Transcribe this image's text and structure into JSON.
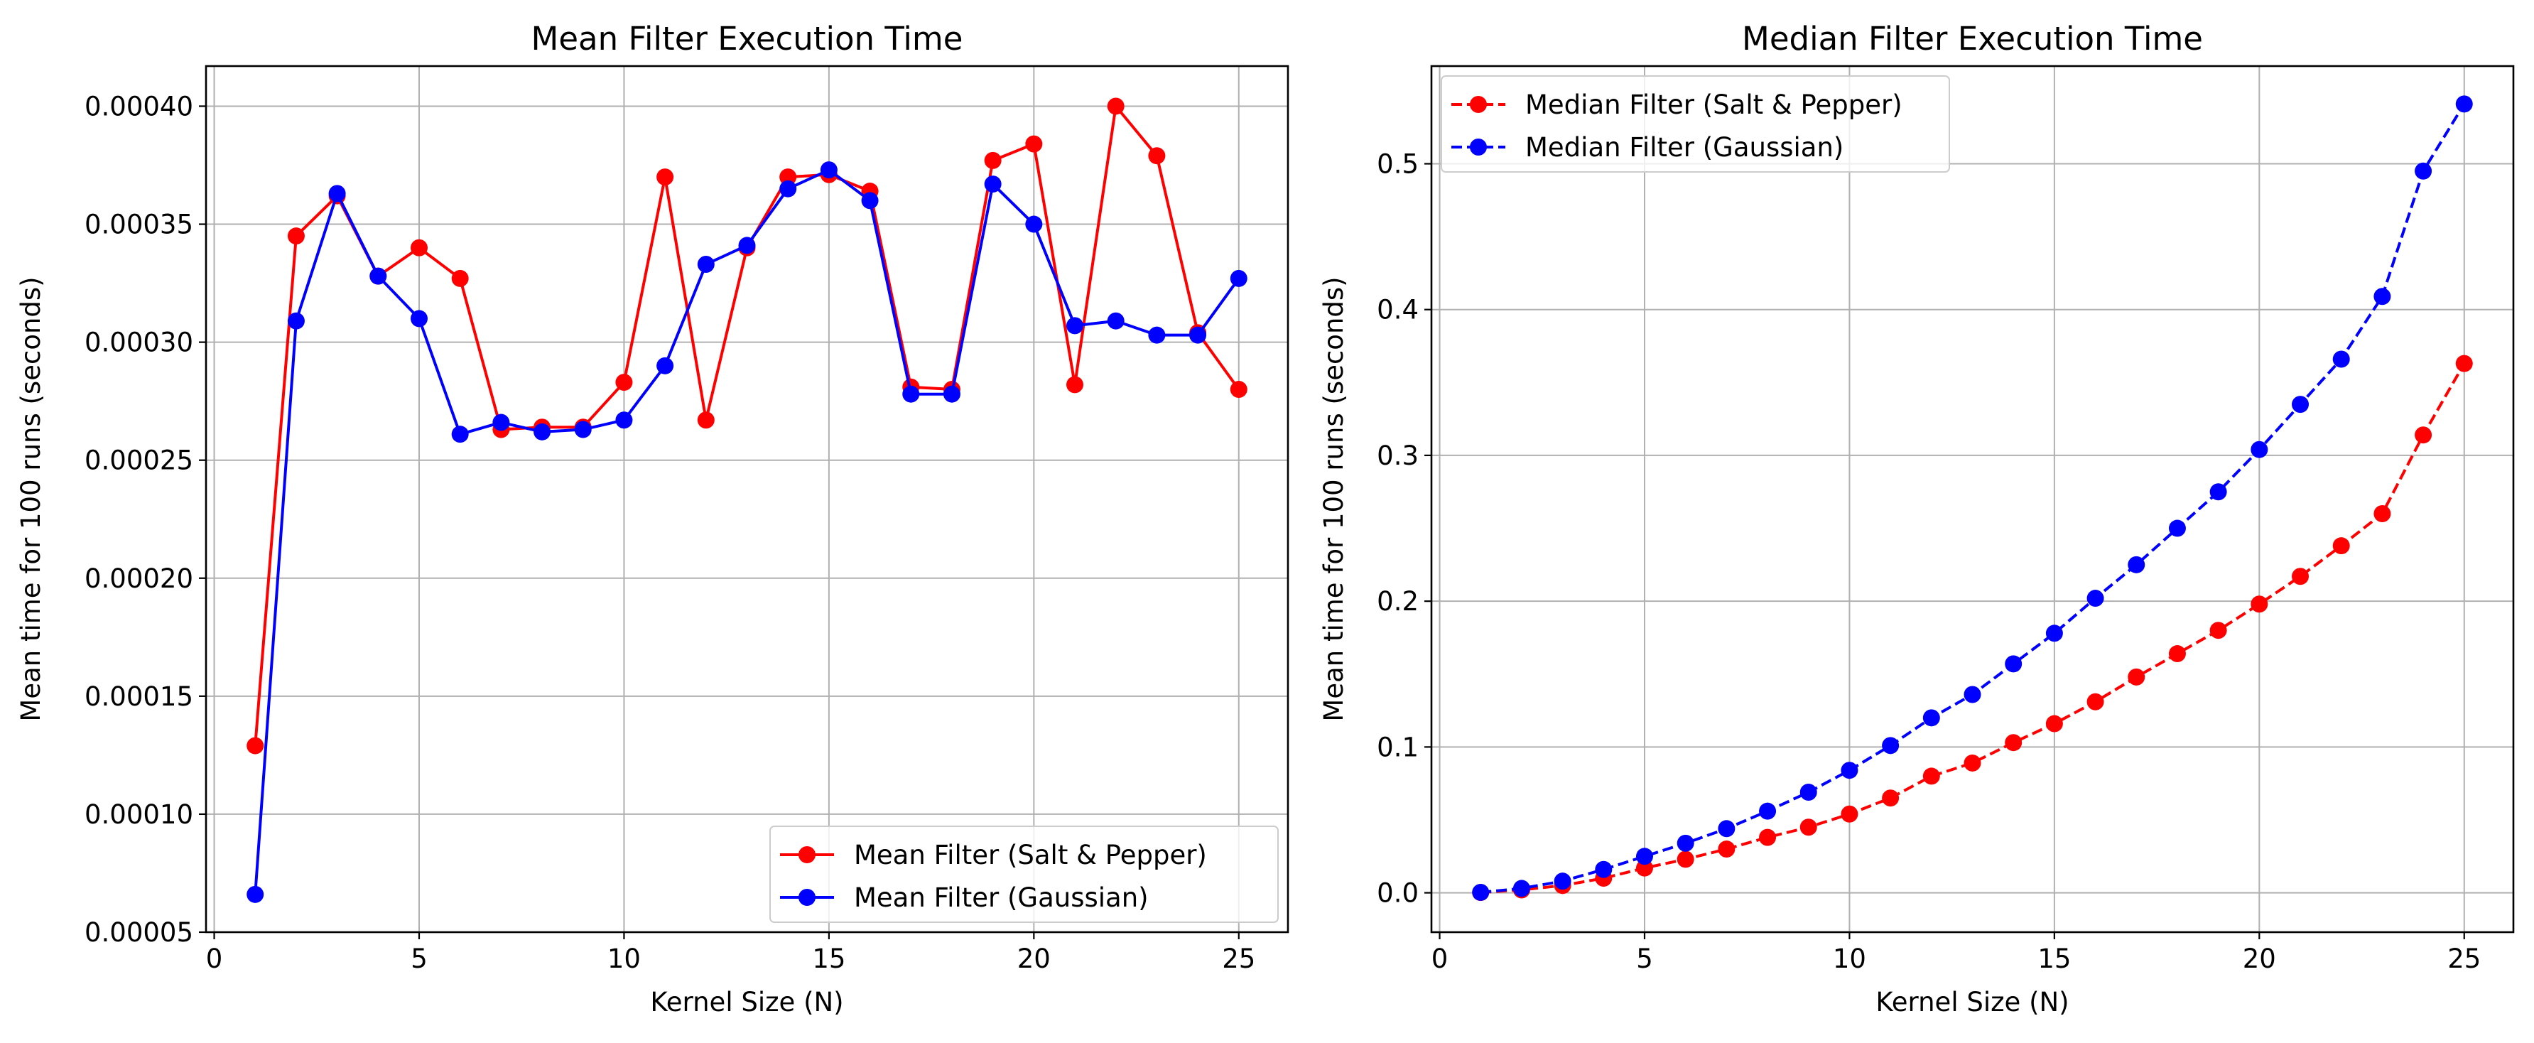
{
  "chart_data": [
    {
      "type": "line",
      "title": "Mean Filter Execution Time",
      "xlabel": "Kernel Size (N)",
      "ylabel": "Mean time for 100 runs (seconds)",
      "xlim": [
        -0.2,
        26.2
      ],
      "ylim": [
        5e-05,
        0.000417
      ],
      "xticks": [
        0,
        5,
        10,
        15,
        20,
        25
      ],
      "xtick_labels": [
        "0",
        "5",
        "10",
        "15",
        "20",
        "25"
      ],
      "yticks": [
        5e-05,
        0.0001,
        0.00015,
        0.0002,
        0.00025,
        0.0003,
        0.00035,
        0.0004
      ],
      "ytick_labels": [
        "0.00005",
        "0.00010",
        "0.00015",
        "0.00020",
        "0.00025",
        "0.00030",
        "0.00035",
        "0.00040"
      ],
      "grid": true,
      "legend_position": "bottom-right",
      "x": [
        1,
        2,
        3,
        4,
        5,
        6,
        7,
        8,
        9,
        10,
        11,
        12,
        13,
        14,
        15,
        16,
        17,
        18,
        19,
        20,
        21,
        22,
        23,
        24,
        25
      ],
      "series": [
        {
          "name": "Mean Filter (Salt & Pepper)",
          "color": "#ff0000",
          "dashed": false,
          "values": [
            0.000129,
            0.000345,
            0.000362,
            0.000328,
            0.00034,
            0.000327,
            0.000263,
            0.000264,
            0.000264,
            0.000283,
            0.00037,
            0.000267,
            0.00034,
            0.00037,
            0.000371,
            0.000364,
            0.000281,
            0.00028,
            0.000377,
            0.000384,
            0.000282,
            0.0004,
            0.000379,
            0.000304,
            0.00028
          ]
        },
        {
          "name": "Mean Filter (Gaussian)",
          "color": "#0000ff",
          "dashed": false,
          "values": [
            6.6e-05,
            0.000309,
            0.000363,
            0.000328,
            0.00031,
            0.000261,
            0.000266,
            0.000262,
            0.000263,
            0.000267,
            0.00029,
            0.000333,
            0.000341,
            0.000365,
            0.000373,
            0.00036,
            0.000278,
            0.000278,
            0.000367,
            0.00035,
            0.000307,
            0.000309,
            0.000303,
            0.000303,
            0.000327
          ]
        }
      ]
    },
    {
      "type": "line",
      "title": "Median Filter Execution Time",
      "xlabel": "Kernel Size (N)",
      "ylabel": "Mean time for 100 runs (seconds)",
      "xlim": [
        -0.2,
        26.2
      ],
      "ylim": [
        -0.027,
        0.567
      ],
      "xticks": [
        0,
        5,
        10,
        15,
        20,
        25
      ],
      "xtick_labels": [
        "0",
        "5",
        "10",
        "15",
        "20",
        "25"
      ],
      "yticks": [
        0.0,
        0.1,
        0.2,
        0.3,
        0.4,
        0.5
      ],
      "ytick_labels": [
        "0.0",
        "0.1",
        "0.2",
        "0.3",
        "0.4",
        "0.5"
      ],
      "grid": true,
      "legend_position": "top-left",
      "x": [
        1,
        2,
        3,
        4,
        5,
        6,
        7,
        8,
        9,
        10,
        11,
        12,
        13,
        14,
        15,
        16,
        17,
        18,
        19,
        20,
        21,
        22,
        23,
        24,
        25
      ],
      "series": [
        {
          "name": "Median Filter (Salt & Pepper)",
          "color": "#ff0000",
          "dashed": true,
          "values": [
            0.0002,
            0.002,
            0.005,
            0.01,
            0.017,
            0.023,
            0.03,
            0.038,
            0.045,
            0.054,
            0.065,
            0.08,
            0.089,
            0.103,
            0.116,
            0.131,
            0.148,
            0.164,
            0.18,
            0.198,
            0.217,
            0.238,
            0.26,
            0.314,
            0.363
          ]
        },
        {
          "name": "Median Filter (Gaussian)",
          "color": "#0000ff",
          "dashed": true,
          "values": [
            0.0003,
            0.003,
            0.008,
            0.016,
            0.025,
            0.034,
            0.044,
            0.056,
            0.069,
            0.084,
            0.101,
            0.12,
            0.136,
            0.157,
            0.178,
            0.202,
            0.225,
            0.25,
            0.275,
            0.304,
            0.335,
            0.366,
            0.409,
            0.495,
            0.541
          ]
        }
      ]
    }
  ]
}
